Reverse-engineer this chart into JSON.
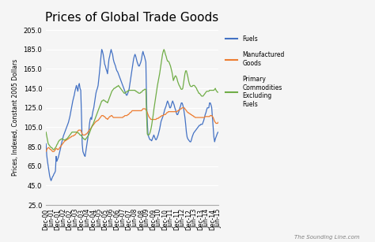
{
  "title": "Prices of Global Trade Goods",
  "ylabel": "Prices, Indexed, Constant 2005 Dollars",
  "ylim": [
    25.0,
    205.0
  ],
  "yticks": [
    25.0,
    45.0,
    65.0,
    85.0,
    105.0,
    125.0,
    145.0,
    165.0,
    185.0,
    205.0
  ],
  "background_color": "#f5f5f5",
  "watermark": "The Sounding Line.com",
  "legend_entries": [
    "Fuels",
    "Manufactured\nGoods",
    "Primary\nCommodities\nExcluding\nFuels"
  ],
  "line_colors": [
    "#4472c4",
    "#ed7d31",
    "#70ad47"
  ],
  "fuels": [
    88,
    76,
    70,
    65,
    60,
    55,
    52,
    50,
    52,
    54,
    55,
    57,
    58,
    60,
    75,
    70,
    72,
    74,
    77,
    80,
    83,
    87,
    90,
    93,
    96,
    98,
    100,
    102,
    104,
    106,
    108,
    110,
    113,
    116,
    120,
    124,
    128,
    132,
    135,
    138,
    142,
    145,
    148,
    145,
    142,
    148,
    150,
    145,
    143,
    118,
    88,
    80,
    78,
    76,
    75,
    80,
    85,
    90,
    95,
    100,
    108,
    113,
    115,
    113,
    118,
    122,
    125,
    130,
    135,
    140,
    143,
    145,
    148,
    155,
    162,
    170,
    178,
    185,
    183,
    180,
    175,
    170,
    168,
    165,
    163,
    160,
    168,
    175,
    178,
    182,
    185,
    182,
    180,
    175,
    172,
    170,
    168,
    165,
    163,
    162,
    160,
    158,
    156,
    154,
    152,
    150,
    148,
    146,
    144,
    142,
    140,
    138,
    138,
    140,
    142,
    145,
    150,
    155,
    160,
    165,
    170,
    175,
    178,
    180,
    178,
    175,
    172,
    170,
    168,
    168,
    170,
    172,
    175,
    180,
    183,
    180,
    178,
    175,
    172,
    130,
    110,
    97,
    95,
    93,
    92,
    92,
    91,
    93,
    95,
    97,
    95,
    93,
    92,
    93,
    95,
    97,
    100,
    103,
    107,
    111,
    113,
    115,
    117,
    120,
    123,
    125,
    127,
    130,
    132,
    130,
    128,
    125,
    125,
    127,
    130,
    132,
    130,
    128,
    125,
    123,
    120,
    118,
    118,
    120,
    122,
    125,
    127,
    130,
    130,
    128,
    125,
    120,
    115,
    108,
    100,
    95,
    93,
    92,
    91,
    90,
    90,
    92,
    95,
    97,
    99,
    100,
    101,
    102,
    103,
    104,
    105,
    106,
    107,
    107,
    108,
    108,
    108,
    110,
    112,
    115,
    118,
    120,
    123,
    125,
    125,
    125,
    130,
    130,
    128,
    125,
    115,
    105,
    95,
    90,
    93,
    95,
    97,
    99,
    100
  ],
  "manufactured": [
    80,
    82,
    83,
    84,
    84,
    83,
    82,
    82,
    81,
    80,
    80,
    80,
    81,
    82,
    83,
    83,
    82,
    82,
    83,
    84,
    85,
    86,
    87,
    88,
    89,
    90,
    91,
    91,
    92,
    92,
    93,
    93,
    94,
    94,
    95,
    95,
    96,
    96,
    96,
    97,
    97,
    98,
    99,
    100,
    101,
    102,
    102,
    102,
    102,
    100,
    98,
    97,
    97,
    97,
    97,
    98,
    98,
    99,
    100,
    101,
    102,
    103,
    104,
    105,
    106,
    107,
    108,
    109,
    110,
    111,
    111,
    112,
    112,
    113,
    114,
    115,
    116,
    117,
    117,
    117,
    116,
    116,
    115,
    114,
    114,
    113,
    114,
    115,
    116,
    116,
    117,
    117,
    116,
    115,
    115,
    115,
    115,
    115,
    115,
    115,
    115,
    115,
    115,
    115,
    115,
    115,
    115,
    116,
    116,
    117,
    117,
    117,
    117,
    118,
    118,
    119,
    120,
    120,
    121,
    122,
    122,
    122,
    122,
    122,
    122,
    122,
    122,
    122,
    122,
    122,
    122,
    122,
    122,
    123,
    124,
    124,
    124,
    124,
    123,
    122,
    120,
    118,
    116,
    115,
    114,
    113,
    113,
    113,
    113,
    113,
    113,
    113,
    113,
    114,
    114,
    114,
    115,
    115,
    116,
    116,
    117,
    117,
    117,
    118,
    118,
    118,
    119,
    120,
    120,
    121,
    121,
    121,
    121,
    121,
    121,
    121,
    121,
    121,
    121,
    121,
    121,
    121,
    122,
    122,
    123,
    123,
    124,
    124,
    125,
    125,
    125,
    125,
    124,
    123,
    122,
    121,
    120,
    120,
    119,
    119,
    118,
    118,
    117,
    117,
    116,
    116,
    115,
    115,
    115,
    115,
    115,
    115,
    115,
    115,
    115,
    115,
    115,
    115,
    115,
    115,
    116,
    116,
    116,
    116,
    116,
    116,
    116,
    117,
    117,
    117,
    116,
    115,
    113,
    111,
    110,
    109,
    109,
    109,
    110
  ],
  "primary": [
    100,
    96,
    92,
    88,
    87,
    86,
    85,
    84,
    84,
    83,
    82,
    82,
    83,
    84,
    85,
    87,
    88,
    90,
    91,
    92,
    92,
    93,
    93,
    93,
    92,
    92,
    92,
    92,
    93,
    93,
    94,
    95,
    96,
    97,
    98,
    99,
    100,
    100,
    100,
    100,
    100,
    100,
    100,
    100,
    99,
    99,
    98,
    97,
    97,
    96,
    95,
    94,
    93,
    93,
    92,
    93,
    94,
    95,
    96,
    97,
    99,
    101,
    103,
    105,
    107,
    108,
    110,
    112,
    114,
    116,
    118,
    120,
    122,
    124,
    126,
    128,
    130,
    132,
    132,
    133,
    133,
    132,
    132,
    131,
    131,
    130,
    132,
    134,
    136,
    138,
    140,
    142,
    143,
    144,
    145,
    145,
    146,
    146,
    147,
    147,
    148,
    147,
    146,
    145,
    144,
    143,
    142,
    141,
    140,
    140,
    141,
    141,
    142,
    142,
    143,
    143,
    143,
    143,
    143,
    143,
    143,
    143,
    143,
    143,
    142,
    142,
    141,
    141,
    140,
    140,
    140,
    141,
    141,
    142,
    143,
    143,
    144,
    144,
    144,
    118,
    98,
    97,
    97,
    98,
    100,
    103,
    107,
    112,
    117,
    123,
    128,
    133,
    138,
    143,
    148,
    152,
    156,
    160,
    165,
    170,
    175,
    180,
    183,
    185,
    183,
    180,
    178,
    175,
    173,
    173,
    172,
    170,
    168,
    165,
    162,
    158,
    153,
    155,
    157,
    158,
    157,
    155,
    152,
    150,
    148,
    147,
    145,
    144,
    144,
    145,
    150,
    155,
    160,
    163,
    163,
    160,
    157,
    153,
    150,
    148,
    147,
    147,
    147,
    148,
    148,
    148,
    147,
    146,
    145,
    143,
    142,
    140,
    140,
    139,
    138,
    137,
    137,
    137,
    138,
    139,
    140,
    141,
    142,
    142,
    142,
    142,
    143,
    143,
    143,
    143,
    143,
    143,
    143,
    144,
    145,
    143,
    142,
    141,
    141
  ],
  "xtick_labels": [
    "Dec-00",
    "Jun-01",
    "Dec-01",
    "Jun-02",
    "Dec-02",
    "Jun-03",
    "Dec-03",
    "Jun-04",
    "Dec-04",
    "Jun-05",
    "Dec-05",
    "Jun-06",
    "Dec-06",
    "Jun-07",
    "Dec-07",
    "Jun-08",
    "Dec-08",
    "Jun-09",
    "Dec-09",
    "Jun-10",
    "Dec-10",
    "Jun-11",
    "Dec-11",
    "Jun-12",
    "Dec-12",
    "Jun-13",
    "Dec-13",
    "Jun-14",
    "Dec-14",
    "Jun-15"
  ],
  "n_points": 239
}
